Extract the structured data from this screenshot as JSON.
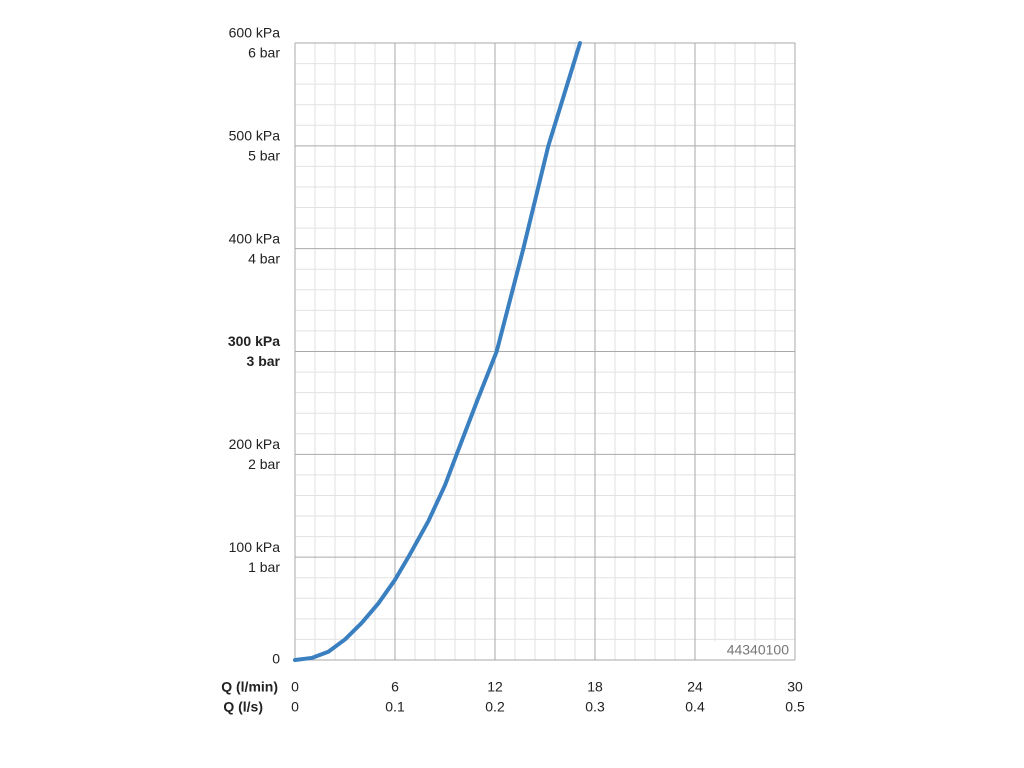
{
  "chart_data": {
    "type": "line",
    "x": [
      0,
      1,
      2,
      3,
      4,
      5,
      6,
      6.8,
      8,
      9,
      9.7,
      11,
      12.1,
      13.7,
      15.2,
      17.1
    ],
    "series": [
      {
        "color": "#3a7fc0",
        "values": [
          0,
          2,
          8,
          20,
          36,
          55,
          78,
          100,
          135,
          170,
          200,
          255,
          300,
          400,
          500,
          600
        ]
      }
    ],
    "xlim": [
      0,
      30
    ],
    "xticks": [
      0,
      6,
      12,
      18,
      24,
      30
    ],
    "xlabel": "Q (l/min)",
    "x2lim": [
      0,
      0.5
    ],
    "x2ticks": [
      0,
      0.1,
      0.2,
      0.3,
      0.4,
      0.5
    ],
    "x2label": "Q (l/s)",
    "ylim": [
      0,
      600
    ],
    "yticks": [
      0,
      {
        "value": 100,
        "label": "100 kPa",
        "sublabel": "1 bar"
      },
      {
        "value": 200,
        "label": "200 kPa",
        "sublabel": "2 bar"
      },
      {
        "value": 300,
        "label": "300 kPa",
        "sublabel": "3 bar",
        "bold": true
      },
      {
        "value": 400,
        "label": "400 kPa",
        "sublabel": "4 bar"
      },
      {
        "value": 500,
        "label": "500 kPa",
        "sublabel": "5 bar"
      },
      {
        "value": 600,
        "label": "600 kPa",
        "sublabel": "6 bar"
      }
    ],
    "grid": true,
    "minor_grid": 5,
    "annotation": "44340100"
  }
}
